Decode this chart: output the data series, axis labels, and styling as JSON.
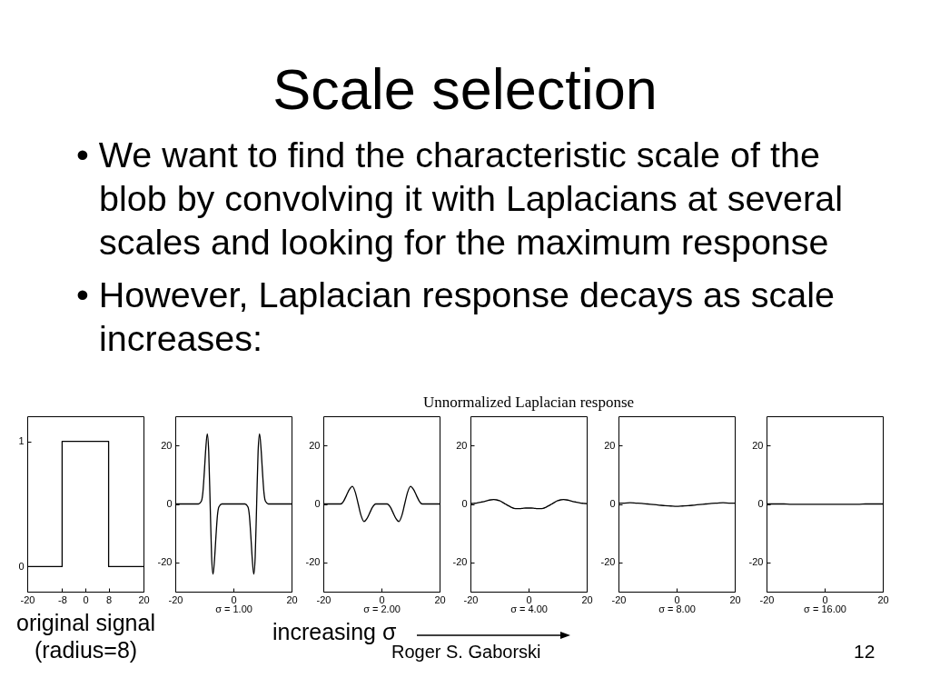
{
  "chart_data": [
    {
      "type": "other",
      "title": "Scale selection",
      "annotations": [
        "• We want to find the characteristic scale of the blob by convolving it with Laplacians at several scales and looking for the maximum response",
        "• However, Laplacian response decays as scale increases:"
      ]
    },
    {
      "type": "line",
      "xlabel": "original signal\n(radius=8)",
      "x": [
        -20,
        -8,
        -8,
        8,
        8,
        20
      ],
      "series": [
        {
          "color": "#000000",
          "values": [
            0,
            0,
            1,
            1,
            0,
            0
          ]
        }
      ],
      "xlim": [
        -20,
        20
      ],
      "xticks": [
        -20,
        -8,
        0,
        8,
        20
      ],
      "ylim": [
        -0.2,
        1.2
      ],
      "yticks": [
        0,
        1
      ]
    },
    {
      "type": "line",
      "xlabel": "σ = 1.00",
      "x": [
        -20,
        -19,
        -18,
        -17,
        -16,
        -15,
        -14,
        -13,
        -12,
        -11,
        -10.5,
        -10,
        -9.5,
        -9,
        -8.5,
        -8,
        -7.5,
        -7,
        -6.5,
        -6,
        -5.5,
        -5,
        -4,
        -3,
        -2,
        -1,
        0,
        1,
        2,
        3,
        4,
        5,
        5.5,
        6,
        6.5,
        7,
        7.5,
        8,
        8.5,
        9,
        9.5,
        10,
        10.5,
        11,
        12,
        13,
        14,
        15,
        16,
        17,
        18,
        19,
        20
      ],
      "series": [
        {
          "color": "#000000",
          "values": [
            0,
            0,
            0,
            0,
            0,
            0,
            0,
            0,
            0,
            1,
            4,
            11,
            19,
            24,
            18,
            0,
            -18,
            -24,
            -19,
            -11,
            -4,
            -1,
            0,
            0,
            0,
            0,
            0,
            0,
            0,
            0,
            0,
            -1,
            -4,
            -11,
            -19,
            -24,
            -18,
            0,
            18,
            24,
            19,
            11,
            4,
            1,
            0,
            0,
            0,
            0,
            0,
            0,
            0,
            0,
            0
          ]
        }
      ],
      "xlim": [
        -20,
        20
      ],
      "xticks": [
        -20,
        0,
        20
      ],
      "ylim": [
        -30,
        30
      ],
      "yticks": [
        -20,
        0,
        20
      ]
    },
    {
      "type": "line",
      "xlabel": "σ = 2.00",
      "x": [
        -20,
        -19,
        -18,
        -17,
        -16,
        -15,
        -14,
        -13,
        -12,
        -11,
        -10,
        -9,
        -8,
        -7,
        -6,
        -5,
        -4,
        -3,
        -2,
        -1,
        0,
        1,
        2,
        3,
        4,
        5,
        6,
        7,
        8,
        9,
        10,
        11,
        12,
        13,
        14,
        15,
        16,
        17,
        18,
        19,
        20
      ],
      "series": [
        {
          "color": "#000000",
          "values": [
            0,
            0,
            0,
            0,
            0,
            0,
            0,
            1,
            3,
            5,
            6,
            4,
            0,
            -4,
            -6,
            -5,
            -3,
            -1,
            0,
            0,
            0,
            0,
            0,
            -1,
            -3,
            -5,
            -6,
            -4,
            0,
            4,
            6,
            5,
            3,
            1,
            0,
            0,
            0,
            0,
            0,
            0,
            0
          ]
        }
      ],
      "xlim": [
        -20,
        20
      ],
      "xticks": [
        -20,
        0,
        20
      ],
      "ylim": [
        -30,
        30
      ],
      "yticks": [
        -20,
        0,
        20
      ]
    },
    {
      "type": "line",
      "title": "Unnormalized Laplacian response",
      "xlabel": "σ = 4.00",
      "x": [
        -20,
        -19,
        -18,
        -17,
        -16,
        -15,
        -14,
        -13,
        -12,
        -11,
        -10,
        -9,
        -8,
        -7,
        -6,
        -5,
        -4,
        -3,
        -2,
        -1,
        0,
        1,
        2,
        3,
        4,
        5,
        6,
        7,
        8,
        9,
        10,
        11,
        12,
        13,
        14,
        15,
        16,
        17,
        18,
        19,
        20
      ],
      "series": [
        {
          "color": "#000000",
          "values": [
            0.1,
            0.2,
            0.3,
            0.5,
            0.7,
            0.9,
            1.2,
            1.4,
            1.5,
            1.4,
            1.1,
            0.6,
            0,
            -0.6,
            -1.1,
            -1.5,
            -1.6,
            -1.6,
            -1.5,
            -1.4,
            -1.4,
            -1.4,
            -1.5,
            -1.6,
            -1.6,
            -1.5,
            -1.1,
            -0.6,
            0,
            0.6,
            1.1,
            1.4,
            1.5,
            1.4,
            1.2,
            0.9,
            0.7,
            0.5,
            0.3,
            0.2,
            0.1
          ]
        }
      ],
      "xlim": [
        -20,
        20
      ],
      "xticks": [
        -20,
        0,
        20
      ],
      "ylim": [
        -30,
        30
      ],
      "yticks": [
        -20,
        0,
        20
      ]
    },
    {
      "type": "line",
      "xlabel": "σ = 8.00",
      "x": [
        -20,
        -18,
        -16,
        -14,
        -12,
        -10,
        -8,
        -6,
        -4,
        -2,
        0,
        2,
        4,
        6,
        8,
        10,
        12,
        14,
        16,
        18,
        20
      ],
      "series": [
        {
          "color": "#000000",
          "values": [
            0.3,
            0.3,
            0.4,
            0.3,
            0.2,
            0,
            -0.2,
            -0.4,
            -0.6,
            -0.7,
            -0.8,
            -0.7,
            -0.6,
            -0.4,
            -0.2,
            0,
            0.2,
            0.3,
            0.4,
            0.3,
            0.3
          ]
        }
      ],
      "xlim": [
        -20,
        20
      ],
      "xticks": [
        -20,
        0,
        20
      ],
      "ylim": [
        -30,
        30
      ],
      "yticks": [
        -20,
        0,
        20
      ]
    },
    {
      "type": "line",
      "xlabel": "σ = 16.00",
      "x": [
        -20,
        -18,
        -16,
        -14,
        -12,
        -10,
        -8,
        -6,
        -4,
        -2,
        0,
        2,
        4,
        6,
        8,
        10,
        12,
        14,
        16,
        18,
        20
      ],
      "series": [
        {
          "color": "#000000",
          "values": [
            0,
            0,
            0,
            0,
            -0.1,
            -0.1,
            -0.1,
            -0.1,
            -0.1,
            -0.1,
            -0.1,
            -0.1,
            -0.1,
            -0.1,
            -0.1,
            -0.1,
            -0.1,
            0,
            0,
            0,
            0
          ]
        }
      ],
      "xlim": [
        -20,
        20
      ],
      "xticks": [
        -20,
        0,
        20
      ],
      "ylim": [
        -30,
        30
      ],
      "yticks": [
        -20,
        0,
        20
      ]
    },
    {
      "type": "other",
      "annotations": [
        "increasing σ",
        "Roger S. Gaborski",
        "12"
      ]
    }
  ]
}
